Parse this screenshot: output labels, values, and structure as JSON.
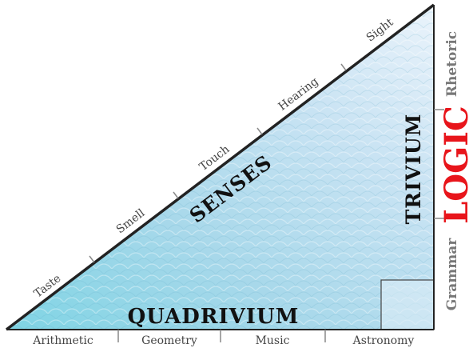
{
  "labels": {
    "senses": "SENSES",
    "quadrivium": "QUADRIVIUM",
    "trivium": "TRIVIUM",
    "logic": "LOGIC"
  },
  "senses_list": [
    "Taste",
    "Smell",
    "Touch",
    "Hearing",
    "Sight"
  ],
  "quadrivium_list": [
    "Arithmetic",
    "Geometry",
    "Music",
    "Astronomy"
  ],
  "trivium_list": [
    "Rhetoric",
    "Grammar"
  ],
  "colors": {
    "logic": "#e8151b",
    "outline": "#222222",
    "fill_light": "#eaf3fb",
    "fill_mid": "#bcdcee",
    "fill_teal": "#7fd4e4"
  }
}
